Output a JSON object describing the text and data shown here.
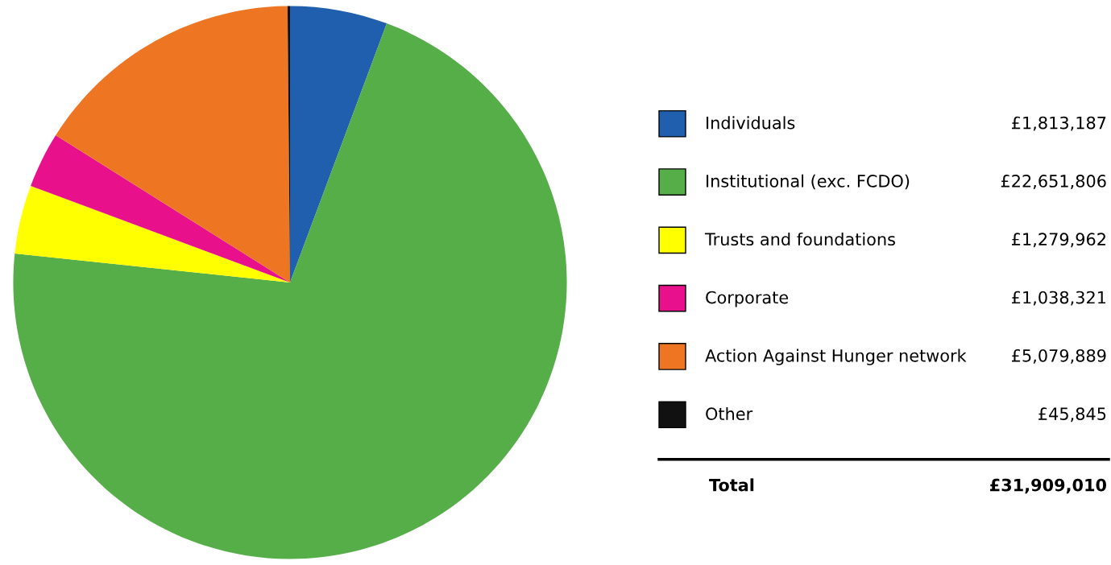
{
  "chart_data": {
    "type": "pie",
    "categories": [
      "Individuals",
      "Institutional (exc. FCDO)",
      "Trusts and foundations",
      "Corporate",
      "Action Against Hunger network",
      "Other"
    ],
    "values": [
      1813187,
      22651806,
      1279962,
      1038321,
      5079889,
      45845
    ],
    "colors": [
      "#1f5fad",
      "#55ae47",
      "#ffff00",
      "#e8118b",
      "#ee7623",
      "#111111"
    ],
    "value_labels": [
      "£1,813,187",
      "£22,651,806",
      "£1,279,962",
      "£1,038,321",
      "£5,079,889",
      "£45,845"
    ],
    "legend": "right",
    "annotations": [
      "Total",
      "£31,909,010"
    ]
  }
}
